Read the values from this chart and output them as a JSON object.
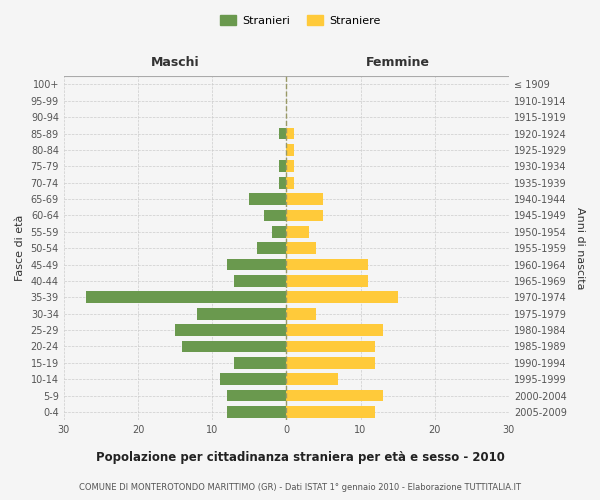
{
  "age_groups": [
    "0-4",
    "5-9",
    "10-14",
    "15-19",
    "20-24",
    "25-29",
    "30-34",
    "35-39",
    "40-44",
    "45-49",
    "50-54",
    "55-59",
    "60-64",
    "65-69",
    "70-74",
    "75-79",
    "80-84",
    "85-89",
    "90-94",
    "95-99",
    "100+"
  ],
  "birth_years": [
    "2005-2009",
    "2000-2004",
    "1995-1999",
    "1990-1994",
    "1985-1989",
    "1980-1984",
    "1975-1979",
    "1970-1974",
    "1965-1969",
    "1960-1964",
    "1955-1959",
    "1950-1954",
    "1945-1949",
    "1940-1944",
    "1935-1939",
    "1930-1934",
    "1925-1929",
    "1920-1924",
    "1915-1919",
    "1910-1914",
    "≤ 1909"
  ],
  "males": [
    8,
    8,
    9,
    7,
    14,
    15,
    12,
    27,
    7,
    8,
    4,
    2,
    3,
    5,
    1,
    1,
    0,
    1,
    0,
    0,
    0
  ],
  "females": [
    12,
    13,
    7,
    12,
    12,
    13,
    4,
    15,
    11,
    11,
    4,
    3,
    5,
    5,
    1,
    1,
    1,
    1,
    0,
    0,
    0
  ],
  "male_color": "#6a994e",
  "female_color": "#ffca3a",
  "background_color": "#f5f5f5",
  "grid_color": "#cccccc",
  "dashed_color": "#999966",
  "title": "Popolazione per cittadinanza straniera per età e sesso - 2010",
  "subtitle": "COMUNE DI MONTEROTONDO MARITTIMO (GR) - Dati ISTAT 1° gennaio 2010 - Elaborazione TUTTITALIA.IT",
  "ylabel_left": "Fasce di età",
  "ylabel_right": "Anni di nascita",
  "header_left": "Maschi",
  "header_right": "Femmine",
  "legend_male": "Stranieri",
  "legend_female": "Straniere",
  "xlim": 30
}
